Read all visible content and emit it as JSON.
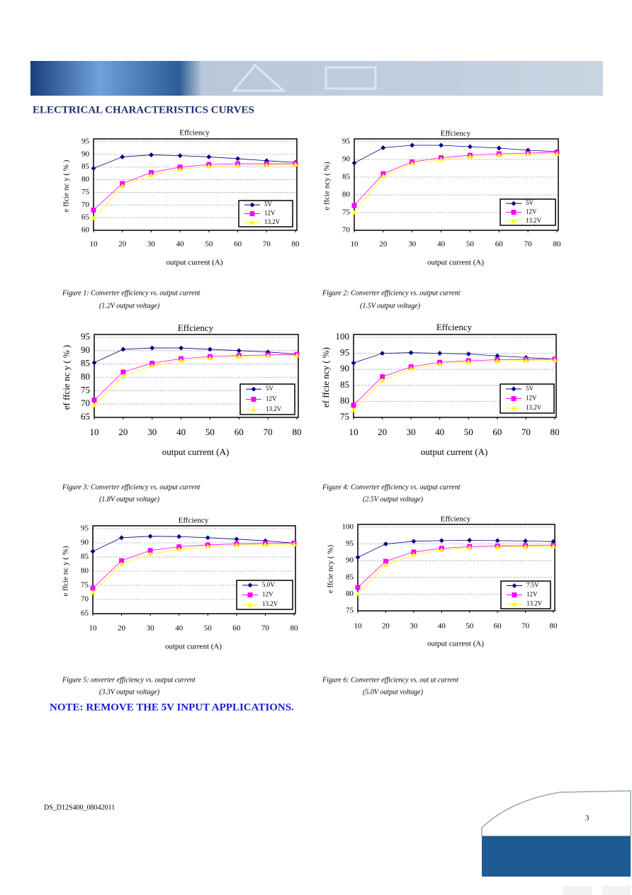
{
  "header": {
    "section_title": "ELECTRICAL CHARACTERISTICS CURVES"
  },
  "chart_data": [
    {
      "type": "line",
      "title": "Effciency",
      "x_label": "output current (A)",
      "y_label": "e ffcie nc y ( % )",
      "x": [
        10,
        20,
        30,
        40,
        50,
        60,
        70,
        80
      ],
      "xlim": [
        10,
        80
      ],
      "xticks": [
        10,
        20,
        30,
        40,
        50,
        60,
        70,
        80
      ],
      "ylim": [
        60,
        95
      ],
      "yticks": [
        60,
        65,
        70,
        75,
        80,
        85,
        90,
        95
      ],
      "grid": true,
      "series": [
        {
          "name": "5V",
          "color": "#000080",
          "values": [
            84.5,
            89,
            89.8,
            89.5,
            89,
            88.3,
            87.5,
            86.8
          ]
        },
        {
          "name": "12V",
          "color": "#ff00ff",
          "values": [
            68,
            78.5,
            82.8,
            85,
            86,
            86.3,
            86.3,
            86.3
          ]
        },
        {
          "name": "13.2V",
          "color": "#ffff00",
          "values": [
            64.8,
            77.5,
            81.8,
            84,
            85.3,
            85.6,
            85.8,
            86
          ]
        }
      ],
      "caption": "Figure 1: Converter efficiency vs. output current",
      "caption_sub": "(1.2V output voltage)"
    },
    {
      "type": "line",
      "title": "Effciency",
      "x_label": "output current (A)",
      "y_label": "e ffcie ncy ( %)",
      "x": [
        10,
        20,
        30,
        40,
        50,
        60,
        70,
        80
      ],
      "xlim": [
        10,
        80
      ],
      "xticks": [
        10,
        20,
        30,
        40,
        50,
        60,
        70,
        80
      ],
      "ylim": [
        70,
        95
      ],
      "yticks": [
        70,
        75,
        80,
        85,
        90,
        95
      ],
      "grid": true,
      "series": [
        {
          "name": "5V",
          "color": "#000080",
          "values": [
            89,
            93.3,
            94,
            94,
            93.6,
            93.2,
            92.6,
            92.2
          ]
        },
        {
          "name": "12V",
          "color": "#ff00ff",
          "values": [
            77,
            86,
            89.3,
            90.5,
            91.2,
            91.6,
            91.8,
            92
          ]
        },
        {
          "name": "13.2V",
          "color": "#ffff00",
          "values": [
            75,
            85.3,
            88.8,
            90,
            90.8,
            91.2,
            91.5,
            91.6
          ]
        }
      ],
      "caption": "Figure 2: Converter efficiency vs. output current",
      "caption_sub": "(1.5V output voltage)"
    },
    {
      "type": "line",
      "title": "Effciency",
      "x_label": "output current (A)",
      "y_label": "ef ffcie nc y ( % )",
      "x": [
        10,
        20,
        30,
        40,
        50,
        60,
        70,
        80
      ],
      "xlim": [
        10,
        80
      ],
      "xticks": [
        10,
        20,
        30,
        40,
        50,
        60,
        70,
        80
      ],
      "ylim": [
        65,
        95
      ],
      "yticks": [
        65,
        70,
        75,
        80,
        85,
        90,
        95
      ],
      "grid": true,
      "series": [
        {
          "name": "5V",
          "color": "#000080",
          "values": [
            85.5,
            90.5,
            91,
            91,
            90.5,
            90,
            89.5,
            88.7
          ]
        },
        {
          "name": "12V",
          "color": "#ff00ff",
          "values": [
            71.5,
            82,
            85.3,
            87,
            87.8,
            88.2,
            88.4,
            88.6
          ]
        },
        {
          "name": "13.2V",
          "color": "#ffff00",
          "values": [
            69.5,
            80.5,
            84.3,
            86.3,
            87.2,
            87.8,
            88.1,
            88.3
          ]
        }
      ],
      "caption": "Figure 3: Converter efficiency vs. output current",
      "caption_sub": "(1.8V output voltage)"
    },
    {
      "type": "line",
      "title": "Effciency",
      "x_label": "output current (A)",
      "y_label": "ef ffcie ncy ( %)",
      "x": [
        10,
        20,
        30,
        40,
        50,
        60,
        70,
        80
      ],
      "xlim": [
        10,
        80
      ],
      "xticks": [
        10,
        20,
        30,
        40,
        50,
        60,
        70,
        80
      ],
      "ylim": [
        75,
        100
      ],
      "yticks": [
        75,
        80,
        85,
        90,
        95,
        100
      ],
      "grid": true,
      "series": [
        {
          "name": "5V",
          "color": "#000080",
          "values": [
            92,
            95,
            95.2,
            95,
            94.8,
            94.2,
            93.7,
            93.2
          ]
        },
        {
          "name": "12V",
          "color": "#ff00ff",
          "values": [
            78.8,
            87.7,
            90.8,
            92.2,
            92.7,
            93,
            93.1,
            93.2
          ]
        },
        {
          "name": "13.2V",
          "color": "#ffff00",
          "values": [
            77.2,
            86.5,
            90.2,
            91.6,
            92.3,
            92.6,
            92.8,
            92.9
          ]
        }
      ],
      "caption": "Figure 4: Converter efficiency vs. output current",
      "caption_sub": "(2.5V output voltage)"
    },
    {
      "type": "line",
      "title": "Effciency",
      "x_label": "output current (A)",
      "y_label": "e ffcie nc y ( %)",
      "x": [
        10,
        20,
        30,
        40,
        50,
        60,
        70,
        80
      ],
      "xlim": [
        10,
        80
      ],
      "xticks": [
        10,
        20,
        30,
        40,
        50,
        60,
        70,
        80
      ],
      "ylim": [
        65,
        95
      ],
      "yticks": [
        65,
        70,
        75,
        80,
        85,
        90,
        95
      ],
      "grid": true,
      "series": [
        {
          "name": "5.0V",
          "color": "#000080",
          "values": [
            87,
            91.8,
            92.3,
            92.2,
            91.8,
            91.3,
            90.7,
            89.9
          ]
        },
        {
          "name": "12V",
          "color": "#ff00ff",
          "values": [
            74,
            83.7,
            87.3,
            88.6,
            89.3,
            89.6,
            89.8,
            89.9
          ]
        },
        {
          "name": "13.2V",
          "color": "#ffff00",
          "values": [
            72.5,
            82.5,
            86,
            87.7,
            88.7,
            89.2,
            89.4,
            89.5
          ]
        }
      ],
      "caption": "Figure 5:  onverter efficiency vs. output current",
      "caption_sub": "(3.3V output voltage)"
    },
    {
      "type": "line",
      "title": "Effciency",
      "x_label": "output current (A)",
      "y_label": "e ffcie ncy ( %)",
      "x": [
        10,
        20,
        30,
        40,
        50,
        60,
        70,
        80
      ],
      "xlim": [
        10,
        80
      ],
      "xticks": [
        10,
        20,
        30,
        40,
        50,
        60,
        70,
        80
      ],
      "ylim": [
        75,
        100
      ],
      "yticks": [
        75,
        80,
        85,
        90,
        95,
        100
      ],
      "grid": true,
      "series": [
        {
          "name": "7.5V",
          "color": "#000080",
          "values": [
            91,
            95,
            95.8,
            96,
            96.1,
            96,
            95.9,
            95.7
          ]
        },
        {
          "name": "12V",
          "color": "#ff00ff",
          "values": [
            82,
            89.8,
            92.6,
            93.7,
            94.2,
            94.4,
            94.5,
            94.6
          ]
        },
        {
          "name": "13.2V",
          "color": "#ffff00",
          "values": [
            80,
            88.8,
            91.8,
            93.2,
            93.9,
            94.1,
            94.2,
            94.3
          ]
        }
      ],
      "caption": "Figure 6: Converter efficiency vs. out ut current",
      "caption_sub": "(5.0V output voltage)"
    }
  ],
  "note": "NOTE: REMOVE THE 5V INPUT APPLICATIONS.",
  "footer": {
    "doc_id": "DS_D12S400_08042011",
    "page": "3"
  }
}
